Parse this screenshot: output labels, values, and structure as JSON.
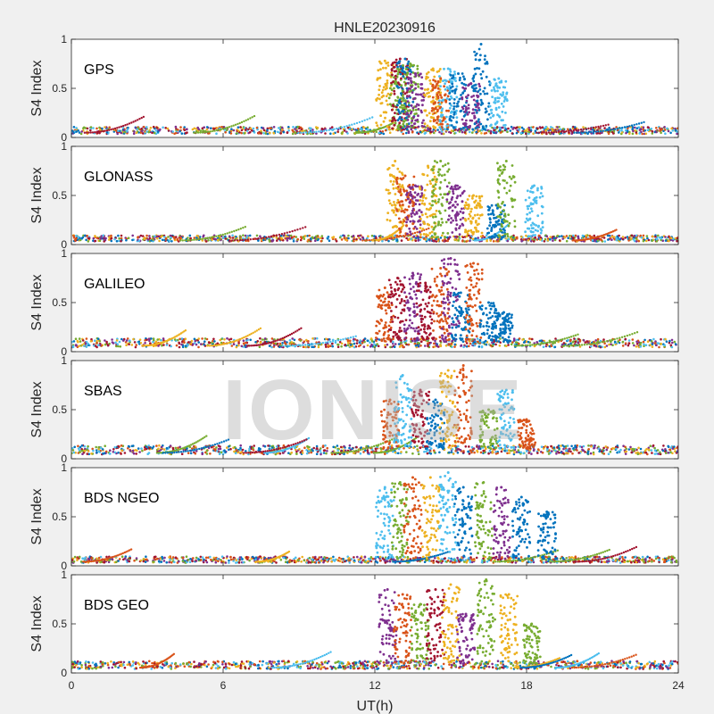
{
  "figure": {
    "title": "HNLE20230916",
    "watermark": "IONISE",
    "background": "#f0f0f0",
    "axes_background": "#ffffff"
  },
  "chart_data": {
    "type": "scatter",
    "title": "HNLE20230916",
    "xlabel": "UT(h)",
    "ylabel": "S4 Index",
    "xlim": [
      0,
      24
    ],
    "ylim": [
      0,
      1
    ],
    "x_ticks": [
      0,
      6,
      12,
      18,
      24
    ],
    "y_ticks": [
      0,
      0.5,
      1
    ],
    "x_tick_labels": [
      "0",
      "6",
      "12",
      "18",
      "24"
    ],
    "y_tick_labels": [
      "0",
      "0.5",
      "1"
    ],
    "colors": [
      "#0072BD",
      "#D95319",
      "#EDB120",
      "#7E2F8E",
      "#77AC30",
      "#4DBEEE",
      "#A2142F"
    ],
    "panels": [
      {
        "label": "GPS",
        "quiet_base": 0.08,
        "bursts": [
          {
            "x": 12.4,
            "s4": 0.78,
            "series": 2
          },
          {
            "x": 12.9,
            "s4": 0.7,
            "series": 4
          },
          {
            "x": 13.0,
            "s4": 0.8,
            "series": 6
          },
          {
            "x": 13.2,
            "s4": 0.8,
            "series": 0
          },
          {
            "x": 13.4,
            "s4": 0.75,
            "series": 4
          },
          {
            "x": 13.6,
            "s4": 0.65,
            "series": 3
          },
          {
            "x": 14.3,
            "s4": 0.7,
            "series": 2
          },
          {
            "x": 14.6,
            "s4": 0.6,
            "series": 1
          },
          {
            "x": 14.9,
            "s4": 0.7,
            "series": 5
          },
          {
            "x": 15.3,
            "s4": 0.65,
            "series": 0
          },
          {
            "x": 15.8,
            "s4": 0.55,
            "series": 3
          },
          {
            "x": 16.2,
            "s4": 0.95,
            "series": 0
          },
          {
            "x": 16.9,
            "s4": 0.6,
            "series": 5
          }
        ]
      },
      {
        "label": "GLONASS",
        "quiet_base": 0.07,
        "bursts": [
          {
            "x": 12.8,
            "s4": 0.85,
            "series": 2
          },
          {
            "x": 13.2,
            "s4": 0.7,
            "series": 1
          },
          {
            "x": 13.6,
            "s4": 0.6,
            "series": 3
          },
          {
            "x": 14.1,
            "s4": 0.8,
            "series": 2
          },
          {
            "x": 14.6,
            "s4": 0.85,
            "series": 4
          },
          {
            "x": 15.2,
            "s4": 0.6,
            "series": 3
          },
          {
            "x": 15.9,
            "s4": 0.5,
            "series": 2
          },
          {
            "x": 16.8,
            "s4": 0.4,
            "series": 0
          },
          {
            "x": 17.2,
            "s4": 0.85,
            "series": 4
          },
          {
            "x": 18.3,
            "s4": 0.6,
            "series": 5
          }
        ]
      },
      {
        "label": "GALILEO",
        "quiet_base": 0.1,
        "bursts": [
          {
            "x": 12.4,
            "s4": 0.65,
            "series": 1
          },
          {
            "x": 12.9,
            "s4": 0.75,
            "series": 6
          },
          {
            "x": 13.5,
            "s4": 0.8,
            "series": 3
          },
          {
            "x": 14.0,
            "s4": 0.7,
            "series": 6
          },
          {
            "x": 14.6,
            "s4": 0.85,
            "series": 1
          },
          {
            "x": 15.0,
            "s4": 0.95,
            "series": 3
          },
          {
            "x": 15.4,
            "s4": 0.6,
            "series": 0
          },
          {
            "x": 15.9,
            "s4": 0.9,
            "series": 1
          },
          {
            "x": 16.5,
            "s4": 0.5,
            "series": 0
          },
          {
            "x": 17.1,
            "s4": 0.4,
            "series": 0
          }
        ]
      },
      {
        "label": "SBAS",
        "quiet_base": 0.1,
        "bursts": [
          {
            "x": 12.6,
            "s4": 0.6,
            "series": 1
          },
          {
            "x": 13.1,
            "s4": 0.85,
            "series": 5
          },
          {
            "x": 13.8,
            "s4": 0.7,
            "series": 6
          },
          {
            "x": 14.4,
            "s4": 0.6,
            "series": 0
          },
          {
            "x": 14.9,
            "s4": 0.9,
            "series": 2
          },
          {
            "x": 15.5,
            "s4": 0.95,
            "series": 1
          },
          {
            "x": 16.5,
            "s4": 0.5,
            "series": 4
          },
          {
            "x": 17.2,
            "s4": 0.7,
            "series": 5
          },
          {
            "x": 18.0,
            "s4": 0.4,
            "series": 1
          }
        ]
      },
      {
        "label": "BDS NGEO",
        "quiet_base": 0.07,
        "bursts": [
          {
            "x": 12.4,
            "s4": 0.8,
            "series": 5
          },
          {
            "x": 13.0,
            "s4": 0.85,
            "series": 4
          },
          {
            "x": 13.5,
            "s4": 0.9,
            "series": 1
          },
          {
            "x": 14.2,
            "s4": 0.9,
            "series": 2
          },
          {
            "x": 14.9,
            "s4": 0.95,
            "series": 5
          },
          {
            "x": 15.5,
            "s4": 0.8,
            "series": 0
          },
          {
            "x": 16.3,
            "s4": 0.85,
            "series": 4
          },
          {
            "x": 17.0,
            "s4": 0.8,
            "series": 3
          },
          {
            "x": 17.8,
            "s4": 0.7,
            "series": 0
          },
          {
            "x": 18.8,
            "s4": 0.55,
            "series": 0
          }
        ]
      },
      {
        "label": "BDS GEO",
        "quiet_base": 0.09,
        "bursts": [
          {
            "x": 12.5,
            "s4": 0.85,
            "series": 3
          },
          {
            "x": 13.1,
            "s4": 0.8,
            "series": 1
          },
          {
            "x": 13.8,
            "s4": 0.7,
            "series": 4
          },
          {
            "x": 14.4,
            "s4": 0.85,
            "series": 6
          },
          {
            "x": 15.0,
            "s4": 0.9,
            "series": 2
          },
          {
            "x": 15.6,
            "s4": 0.6,
            "series": 3
          },
          {
            "x": 16.4,
            "s4": 0.95,
            "series": 4
          },
          {
            "x": 17.3,
            "s4": 0.8,
            "series": 2
          },
          {
            "x": 18.2,
            "s4": 0.5,
            "series": 4
          }
        ]
      }
    ]
  }
}
